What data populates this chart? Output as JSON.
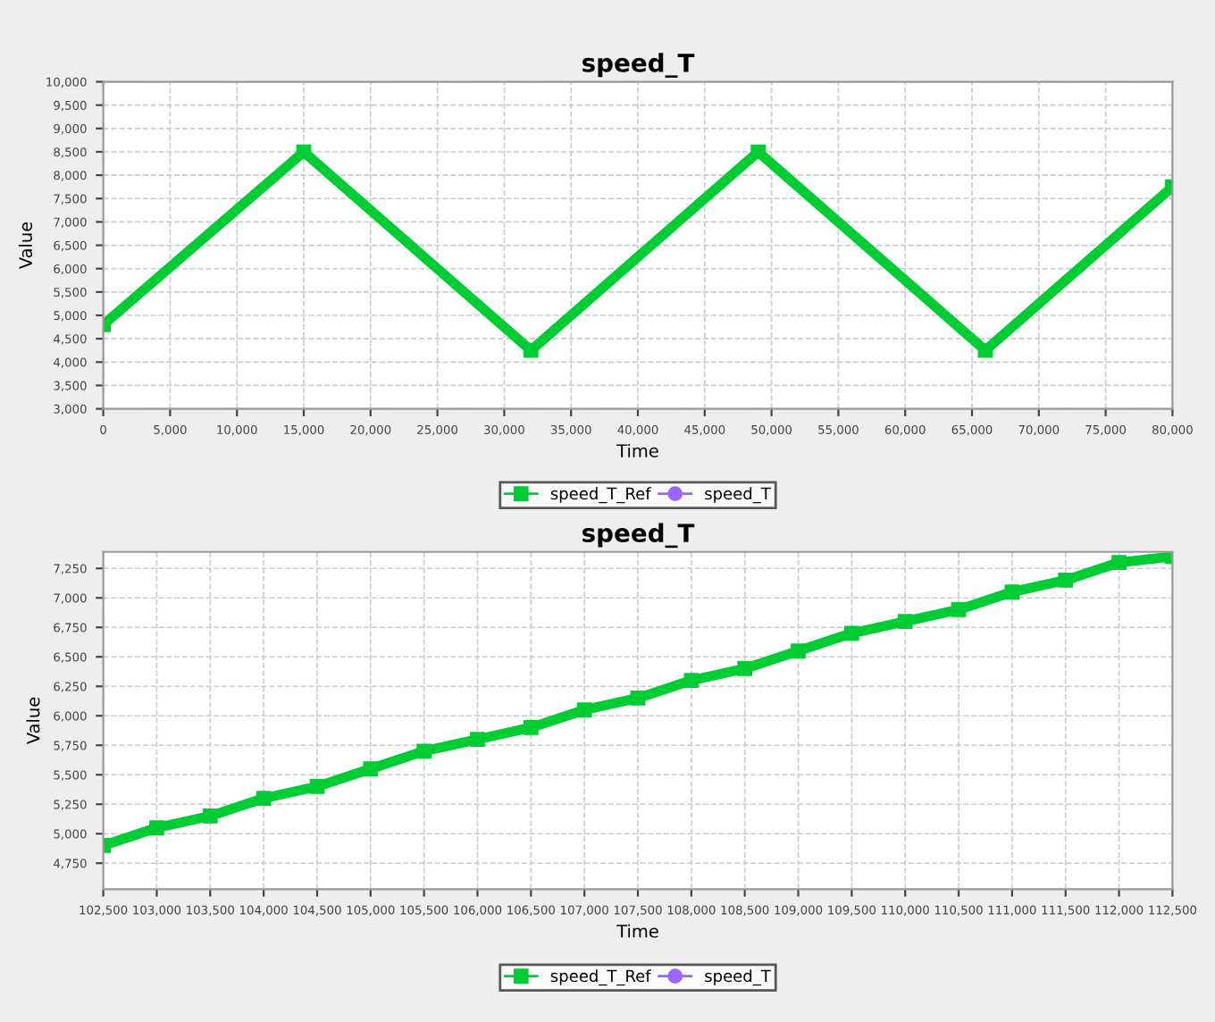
{
  "chart_data": [
    {
      "type": "line",
      "title": "speed_T",
      "xlabel": "Time",
      "ylabel": "Value",
      "grid": true,
      "legend": "bottom",
      "line_style": "solid",
      "series": [
        {
          "name": "speed_T_Ref",
          "color": "#00cc33",
          "marker": "square",
          "x": [
            0,
            15000,
            32000,
            49000,
            66000,
            80000
          ],
          "values": [
            4800,
            8500,
            4250,
            8500,
            4250,
            7750
          ]
        },
        {
          "name": "speed_T",
          "color": "#9966ff",
          "marker": "circle"
        }
      ],
      "xlim": [
        0,
        80000
      ],
      "ylim": [
        3000,
        10000
      ],
      "xticks": [
        0,
        {
          "value": 5000,
          "label": "5,000"
        },
        {
          "value": 10000,
          "label": "10,000"
        },
        {
          "value": 15000,
          "label": "15,000"
        },
        {
          "value": 20000,
          "label": "20,000"
        },
        {
          "value": 25000,
          "label": "25,000"
        },
        {
          "value": 30000,
          "label": "30,000"
        },
        {
          "value": 35000,
          "label": "35,000"
        },
        {
          "value": 40000,
          "label": "40,000"
        },
        {
          "value": 45000,
          "label": "45,000"
        },
        {
          "value": 50000,
          "label": "50,000"
        },
        {
          "value": 55000,
          "label": "55,000"
        },
        {
          "value": 60000,
          "label": "60,000"
        },
        {
          "value": 65000,
          "label": "65,000"
        },
        {
          "value": 70000,
          "label": "70,000"
        },
        {
          "value": 75000,
          "label": "75,000"
        },
        {
          "value": 80000,
          "label": "80,000"
        }
      ],
      "yticks": [
        {
          "value": 3000,
          "label": "3,000"
        },
        {
          "value": 3500,
          "label": "3,500"
        },
        {
          "value": 4000,
          "label": "4,000"
        },
        {
          "value": 4500,
          "label": "4,500"
        },
        {
          "value": 5000,
          "label": "5,000"
        },
        {
          "value": 5500,
          "label": "5,500"
        },
        {
          "value": 6000,
          "label": "6,000"
        },
        {
          "value": 6500,
          "label": "6,500"
        },
        {
          "value": 7000,
          "label": "7,000"
        },
        {
          "value": 7500,
          "label": "7,500"
        },
        {
          "value": 8000,
          "label": "8,000"
        },
        {
          "value": 8500,
          "label": "8,500"
        },
        {
          "value": 9000,
          "label": "9,000"
        },
        {
          "value": 9500,
          "label": "9,500"
        },
        {
          "value": 10000,
          "label": "10,000"
        }
      ]
    },
    {
      "type": "line",
      "title": "speed_T",
      "xlabel": "Time",
      "ylabel": "Value",
      "grid": true,
      "legend": "bottom",
      "line_style": "solid",
      "series": [
        {
          "name": "speed_T_Ref",
          "color": "#00cc33",
          "marker": "square",
          "x": [
            102500,
            103000,
            103500,
            104000,
            104500,
            105000,
            105500,
            106000,
            106500,
            107000,
            107500,
            108000,
            108500,
            109000,
            109500,
            110000,
            110500,
            111000,
            111500,
            112000,
            112500
          ],
          "values": [
            4900,
            5050,
            5150,
            5300,
            5400,
            5550,
            5700,
            5800,
            5900,
            6050,
            6150,
            6300,
            6400,
            6550,
            6700,
            6800,
            6900,
            7050,
            7150,
            7300,
            7350
          ]
        },
        {
          "name": "speed_T",
          "color": "#9966ff",
          "marker": "circle"
        }
      ],
      "xlim": [
        102500,
        112500
      ],
      "ylim": [
        4530,
        7390
      ],
      "xticks": [
        {
          "value": 102500,
          "label": "102,500"
        },
        {
          "value": 103000,
          "label": "103,000"
        },
        {
          "value": 103500,
          "label": "103,500"
        },
        {
          "value": 104000,
          "label": "104,000"
        },
        {
          "value": 104500,
          "label": "104,500"
        },
        {
          "value": 105000,
          "label": "105,000"
        },
        {
          "value": 105500,
          "label": "105,500"
        },
        {
          "value": 106000,
          "label": "106,000"
        },
        {
          "value": 106500,
          "label": "106,500"
        },
        {
          "value": 107000,
          "label": "107,000"
        },
        {
          "value": 107500,
          "label": "107,500"
        },
        {
          "value": 108000,
          "label": "108,000"
        },
        {
          "value": 108500,
          "label": "108,500"
        },
        {
          "value": 109000,
          "label": "109,000"
        },
        {
          "value": 109500,
          "label": "109,500"
        },
        {
          "value": 110000,
          "label": "110,000"
        },
        {
          "value": 110500,
          "label": "110,500"
        },
        {
          "value": 111000,
          "label": "111,000"
        },
        {
          "value": 111500,
          "label": "111,500"
        },
        {
          "value": 112000,
          "label": "112,000"
        },
        {
          "value": 112500,
          "label": "112,500"
        }
      ],
      "yticks": [
        {
          "value": 4750,
          "label": "4,750"
        },
        {
          "value": 5000,
          "label": "5,000"
        },
        {
          "value": 5250,
          "label": "5,250"
        },
        {
          "value": 5500,
          "label": "5,500"
        },
        {
          "value": 5750,
          "label": "5,750"
        },
        {
          "value": 6000,
          "label": "6,000"
        },
        {
          "value": 6250,
          "label": "6,250"
        },
        {
          "value": 6500,
          "label": "6,500"
        },
        {
          "value": 6750,
          "label": "6,750"
        },
        {
          "value": 7000,
          "label": "7,000"
        },
        {
          "value": 7250,
          "label": "7,250"
        }
      ]
    }
  ]
}
